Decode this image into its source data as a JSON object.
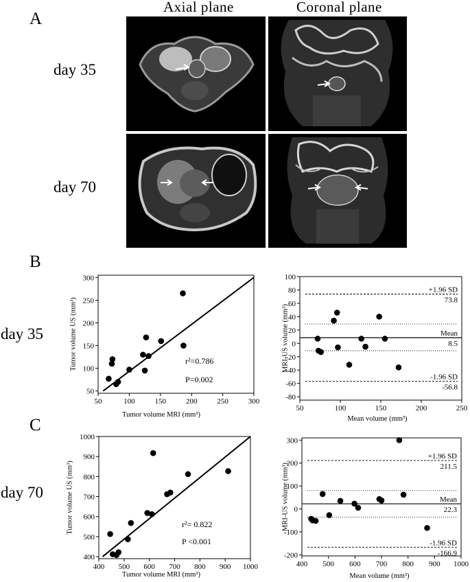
{
  "panel_a": {
    "letter": "A",
    "col_axial": "Axial plane",
    "col_coronal": "Coronal plane",
    "row_day35": "day 35",
    "row_day70": "day 70"
  },
  "panel_b": {
    "letter": "B",
    "row_label": "day 35"
  },
  "panel_c": {
    "letter": "C",
    "row_label": "day 70"
  },
  "chart_data": [
    {
      "id": "b-scatter",
      "type": "scatter",
      "xlabel": "Tumor volume MRI (mm³)",
      "ylabel": "Tumor volume US (mm³)",
      "xlim": [
        50,
        300
      ],
      "ylim": [
        45,
        305
      ],
      "xticks": [
        50,
        100,
        150,
        200,
        250,
        300
      ],
      "yticks": [
        50,
        100,
        150,
        200,
        250,
        300
      ],
      "points": [
        [
          67,
          77
        ],
        [
          72,
          110
        ],
        [
          73,
          120
        ],
        [
          79,
          65
        ],
        [
          82,
          70
        ],
        [
          100,
          97
        ],
        [
          122,
          130
        ],
        [
          125,
          95
        ],
        [
          127,
          168
        ],
        [
          131,
          127
        ],
        [
          151,
          160
        ],
        [
          186,
          265
        ],
        [
          187,
          150
        ]
      ],
      "fit_line": [
        [
          58,
          50
        ],
        [
          300,
          300
        ]
      ],
      "annotations": [
        "r²=0.786",
        "P=0.002"
      ]
    },
    {
      "id": "b-bland",
      "type": "scatter",
      "xlabel": "Mean volume (mm³)",
      "ylabel": "MRI-US volume (mm³)",
      "xlim": [
        50,
        250
      ],
      "ylim": [
        -85,
        100
      ],
      "xticks": [
        50,
        100,
        150,
        200,
        250
      ],
      "yticks": [
        -80,
        -60,
        -40,
        -20,
        0,
        20,
        40,
        60,
        80,
        100
      ],
      "points": [
        [
          72,
          7
        ],
        [
          73,
          -11
        ],
        [
          76,
          -13
        ],
        [
          92,
          34
        ],
        [
          96,
          46
        ],
        [
          97,
          -6
        ],
        [
          111,
          -32
        ],
        [
          126,
          7
        ],
        [
          131,
          -5
        ],
        [
          148,
          40
        ],
        [
          155,
          7
        ],
        [
          172,
          -36
        ]
      ],
      "lines": [
        {
          "label": "+1.96 SD",
          "value": 73.8,
          "value_text": "73.8",
          "style": "dashed"
        },
        {
          "label": "",
          "value": 29,
          "value_text": "",
          "style": "dotted"
        },
        {
          "label": "Mean",
          "value": 8.5,
          "value_text": "8.5",
          "style": "solid"
        },
        {
          "label": "",
          "value": -11,
          "value_text": "",
          "style": "dotted"
        },
        {
          "label": "-1.96 SD",
          "value": -56.8,
          "value_text": "-56.8",
          "style": "dashed"
        }
      ]
    },
    {
      "id": "c-scatter",
      "type": "scatter",
      "xlabel": "Tumor volume MRI (mm³)",
      "ylabel": "Tumor volume US (mm³)",
      "xlim": [
        400,
        1000
      ],
      "ylim": [
        390,
        1000
      ],
      "xticks": [
        400,
        500,
        600,
        700,
        800,
        900,
        1000
      ],
      "yticks": [
        400,
        500,
        600,
        700,
        800,
        900,
        1000
      ],
      "points": [
        [
          445,
          513
        ],
        [
          455,
          412
        ],
        [
          470,
          408
        ],
        [
          478,
          422
        ],
        [
          515,
          487
        ],
        [
          527,
          568
        ],
        [
          592,
          618
        ],
        [
          610,
          612
        ],
        [
          615,
          917
        ],
        [
          670,
          712
        ],
        [
          683,
          720
        ],
        [
          753,
          812
        ],
        [
          912,
          827
        ]
      ],
      "fit_line": [
        [
          415,
          400
        ],
        [
          1000,
          1000
        ]
      ],
      "annotations": [
        "r²= 0.822",
        "P <0.001"
      ]
    },
    {
      "id": "c-bland",
      "type": "scatter",
      "xlabel": "Mean volume (mm³)",
      "ylabel": "MRI-US volume (mm³)",
      "xlim": [
        400,
        1000
      ],
      "ylim": [
        -205,
        310
      ],
      "xticks": [
        400,
        500,
        600,
        700,
        800,
        900,
        1000
      ],
      "yticks": [
        -200,
        -100,
        0,
        100,
        200,
        300
      ],
      "points": [
        [
          435,
          -43
        ],
        [
          440,
          -50
        ],
        [
          452,
          -52
        ],
        [
          478,
          65
        ],
        [
          503,
          -27
        ],
        [
          545,
          35
        ],
        [
          598,
          23
        ],
        [
          612,
          5
        ],
        [
          692,
          43
        ],
        [
          700,
          37
        ],
        [
          767,
          300
        ],
        [
          783,
          62
        ],
        [
          872,
          -83
        ]
      ],
      "lines": [
        {
          "label": "+1.96 SD",
          "value": 211.5,
          "value_text": "211.5",
          "style": "dashed"
        },
        {
          "label": "",
          "value": 80,
          "value_text": "",
          "style": "dotted"
        },
        {
          "label": "Mean",
          "value": 22.3,
          "value_text": "22.3",
          "style": "solid"
        },
        {
          "label": "",
          "value": -36,
          "value_text": "",
          "style": "dotted"
        },
        {
          "label": "-1.96 SD",
          "value": -166.9,
          "value_text": "-166.9",
          "style": "dashed"
        }
      ]
    }
  ]
}
